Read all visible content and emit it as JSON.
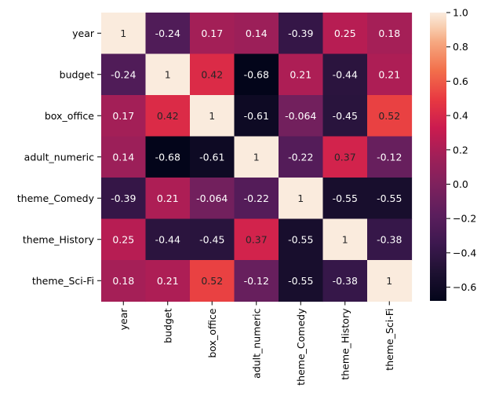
{
  "chart_data": {
    "type": "heatmap",
    "title": "",
    "xlabel": "",
    "ylabel": "",
    "rows": [
      "year",
      "budget",
      "box_office",
      "adult_numeric",
      "theme_Comedy",
      "theme_History",
      "theme_Sci-Fi"
    ],
    "columns": [
      "year",
      "budget",
      "box_office",
      "adult_numeric",
      "theme_Comedy",
      "theme_History",
      "theme_Sci-Fi"
    ],
    "values": [
      [
        1,
        -0.24,
        0.17,
        0.14,
        -0.39,
        0.25,
        0.18
      ],
      [
        -0.24,
        1,
        0.42,
        -0.68,
        0.21,
        -0.44,
        0.21
      ],
      [
        0.17,
        0.42,
        1,
        -0.61,
        -0.064,
        -0.45,
        0.52
      ],
      [
        0.14,
        -0.68,
        -0.61,
        1,
        -0.22,
        0.37,
        -0.12
      ],
      [
        -0.39,
        0.21,
        -0.064,
        -0.22,
        1,
        -0.55,
        -0.55
      ],
      [
        0.25,
        -0.44,
        -0.45,
        0.37,
        -0.55,
        1,
        -0.38
      ],
      [
        0.18,
        0.21,
        0.52,
        -0.12,
        -0.55,
        -0.38,
        1
      ]
    ],
    "cell_labels": [
      [
        "1",
        "-0.24",
        "0.17",
        "0.14",
        "-0.39",
        "0.25",
        "0.18"
      ],
      [
        "-0.24",
        "1",
        "0.42",
        "-0.68",
        "0.21",
        "-0.44",
        "0.21"
      ],
      [
        "0.17",
        "0.42",
        "1",
        "-0.61",
        "-0.064",
        "-0.45",
        "0.52"
      ],
      [
        "0.14",
        "-0.68",
        "-0.61",
        "1",
        "-0.22",
        "0.37",
        "-0.12"
      ],
      [
        "-0.39",
        "0.21",
        "-0.064",
        "-0.22",
        "1",
        "-0.55",
        "-0.55"
      ],
      [
        "0.25",
        "-0.44",
        "-0.45",
        "0.37",
        "-0.55",
        "1",
        "-0.38"
      ],
      [
        "0.18",
        "0.21",
        "0.52",
        "-0.12",
        "-0.55",
        "-0.38",
        "1"
      ]
    ],
    "colormap": "rocket",
    "colorbar": {
      "range": [
        -0.68,
        1.0
      ],
      "ticks": [
        1.0,
        0.8,
        0.6,
        0.4,
        0.2,
        0.0,
        -0.2,
        -0.4,
        -0.6
      ],
      "tick_labels": [
        "1.0",
        "0.8",
        "0.6",
        "0.4",
        "0.2",
        "0.0",
        "−0.2",
        "−0.4",
        "−0.6"
      ],
      "placement": "right"
    },
    "grid": false
  }
}
